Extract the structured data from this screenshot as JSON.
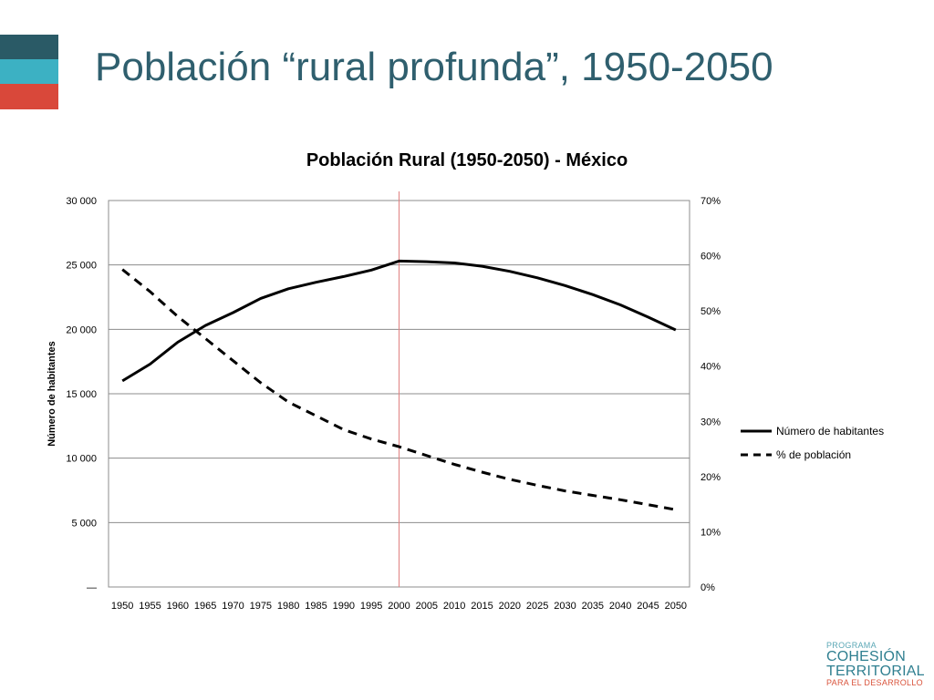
{
  "slide": {
    "title": "Población “rural profunda”, 1950-2050",
    "accent_colors": [
      "#2a5a66",
      "#3cb1c3",
      "#d9483a"
    ]
  },
  "logo": {
    "line1": "PROGRAMA",
    "line2": "COHESIÓN",
    "line3": "TERRITORIAL",
    "line4": "PARA EL DESARROLLO"
  },
  "chart_data": {
    "type": "line",
    "title": "Población Rural (1950-2050) - México",
    "ylabel": "Número de habitantes",
    "y2label": "",
    "x": [
      "1950",
      "1955",
      "1960",
      "1965",
      "1970",
      "1975",
      "1980",
      "1985",
      "1990",
      "1995",
      "2000",
      "2005",
      "2010",
      "2015",
      "2020",
      "2025",
      "2030",
      "2035",
      "2040",
      "2045",
      "2050"
    ],
    "ylim": [
      0,
      30000
    ],
    "y_ticks": [
      "—",
      "5 000",
      "10 000",
      "15 000",
      "20 000",
      "25 000",
      "30 000"
    ],
    "y2lim": [
      0,
      70
    ],
    "y2_ticks": [
      "0%",
      "10%",
      "20%",
      "30%",
      "40%",
      "50%",
      "60%",
      "70%"
    ],
    "grid": true,
    "legend_position": "right",
    "reference_line_x": "2000",
    "reference_line_color": "#e08080",
    "series": [
      {
        "name": "Número de habitantes",
        "axis": "left",
        "style": "solid",
        "values": [
          16000,
          17300,
          19000,
          20300,
          21300,
          22400,
          23150,
          23650,
          24100,
          24600,
          25300,
          25250,
          25150,
          24900,
          24500,
          24000,
          23400,
          22700,
          21900,
          20950,
          19950
        ]
      },
      {
        "name": "% de población",
        "axis": "right",
        "style": "dashed",
        "values": [
          57.5,
          53.5,
          49.0,
          45.0,
          41.0,
          37.0,
          33.5,
          31.0,
          28.5,
          26.8,
          25.4,
          23.8,
          22.2,
          20.8,
          19.5,
          18.4,
          17.4,
          16.6,
          15.8,
          14.9,
          14.0
        ]
      }
    ]
  }
}
